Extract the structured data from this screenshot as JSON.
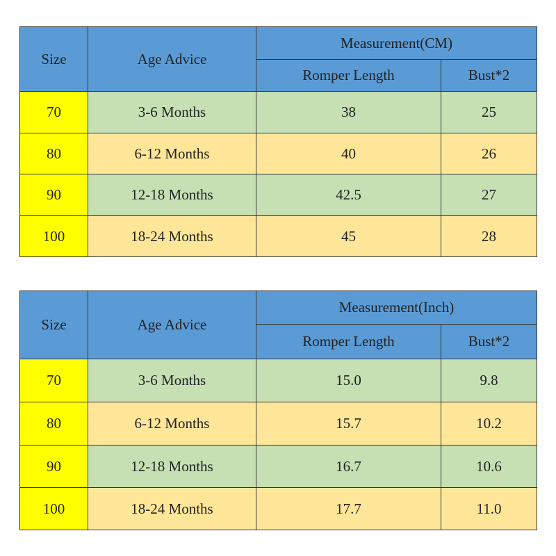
{
  "tables": [
    {
      "headers": {
        "size": "Size",
        "age": "Age Advice",
        "group": "Measurement(CM)",
        "length": "Romper Length",
        "bust": "Bust*2"
      },
      "rows": [
        [
          "70",
          "3-6 Months",
          "38",
          "25"
        ],
        [
          "80",
          "6-12 Months",
          "40",
          "26"
        ],
        [
          "90",
          "12-18 Months",
          "42.5",
          "27"
        ],
        [
          "100",
          "18-24 Months",
          "45",
          "28"
        ]
      ]
    },
    {
      "headers": {
        "size": "Size",
        "age": "Age Advice",
        "group": "Measurement(Inch)",
        "length": "Romper Length",
        "bust": "Bust*2"
      },
      "rows": [
        [
          "70",
          "3-6 Months",
          "15.0",
          "9.8"
        ],
        [
          "80",
          "6-12 Months",
          "15.7",
          "10.2"
        ],
        [
          "90",
          "12-18 Months",
          "16.7",
          "10.6"
        ],
        [
          "100",
          "18-24 Months",
          "17.7",
          "11.0"
        ]
      ]
    }
  ]
}
